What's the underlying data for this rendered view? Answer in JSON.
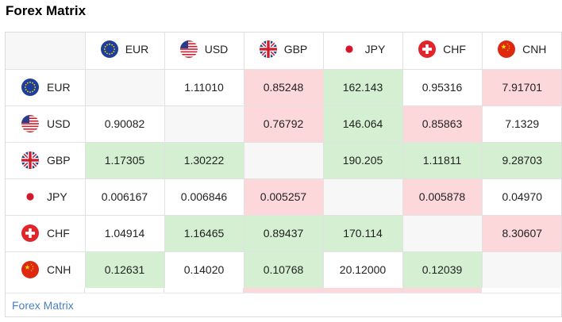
{
  "widget": {
    "title": "Forex Matrix",
    "footer_link": "Forex Matrix"
  },
  "currencies": [
    {
      "code": "EUR",
      "flag": "eu-flag-icon"
    },
    {
      "code": "USD",
      "flag": "us-flag-icon"
    },
    {
      "code": "GBP",
      "flag": "uk-flag-icon"
    },
    {
      "code": "JPY",
      "flag": "japan-flag-icon"
    },
    {
      "code": "CHF",
      "flag": "switzerland-flag-icon"
    },
    {
      "code": "CNH",
      "flag": "china-flag-icon"
    }
  ],
  "rows": [
    {
      "code": "EUR",
      "cells": [
        {
          "value": "",
          "state": "diag"
        },
        {
          "value": "1.11010",
          "state": "same"
        },
        {
          "value": "0.85248",
          "state": "down"
        },
        {
          "value": "162.143",
          "state": "up"
        },
        {
          "value": "0.95316",
          "state": "same"
        },
        {
          "value": "7.91701",
          "state": "down"
        }
      ]
    },
    {
      "code": "USD",
      "cells": [
        {
          "value": "0.90082",
          "state": "same"
        },
        {
          "value": "",
          "state": "diag"
        },
        {
          "value": "0.76792",
          "state": "down"
        },
        {
          "value": "146.064",
          "state": "up"
        },
        {
          "value": "0.85863",
          "state": "down"
        },
        {
          "value": "7.1329",
          "state": "same"
        }
      ]
    },
    {
      "code": "GBP",
      "cells": [
        {
          "value": "1.17305",
          "state": "up"
        },
        {
          "value": "1.30222",
          "state": "up"
        },
        {
          "value": "",
          "state": "diag"
        },
        {
          "value": "190.205",
          "state": "up"
        },
        {
          "value": "1.11811",
          "state": "up"
        },
        {
          "value": "9.28703",
          "state": "up"
        }
      ]
    },
    {
      "code": "JPY",
      "cells": [
        {
          "value": "0.006167",
          "state": "same"
        },
        {
          "value": "0.006846",
          "state": "same"
        },
        {
          "value": "0.005257",
          "state": "down"
        },
        {
          "value": "",
          "state": "diag"
        },
        {
          "value": "0.005878",
          "state": "down"
        },
        {
          "value": "0.04970",
          "state": "same"
        }
      ]
    },
    {
      "code": "CHF",
      "cells": [
        {
          "value": "1.04914",
          "state": "same"
        },
        {
          "value": "1.16465",
          "state": "up"
        },
        {
          "value": "0.89437",
          "state": "up"
        },
        {
          "value": "170.114",
          "state": "up"
        },
        {
          "value": "",
          "state": "diag"
        },
        {
          "value": "8.30607",
          "state": "down"
        }
      ]
    },
    {
      "code": "CNH",
      "cells": [
        {
          "value": "0.12631",
          "state": "up"
        },
        {
          "value": "0.14020",
          "state": "same"
        },
        {
          "value": "0.10768",
          "state": "up"
        },
        {
          "value": "20.12000",
          "state": "same"
        },
        {
          "value": "0.12039",
          "state": "up"
        },
        {
          "value": "",
          "state": "diag"
        }
      ]
    }
  ],
  "partial_row_states": [
    "same",
    "same",
    "same",
    "down",
    "down",
    "down",
    "same"
  ],
  "colors": {
    "up": "#d4efd1",
    "down": "#fdd8db",
    "diag": "#f7f7f7",
    "link": "#4a7fc1"
  }
}
